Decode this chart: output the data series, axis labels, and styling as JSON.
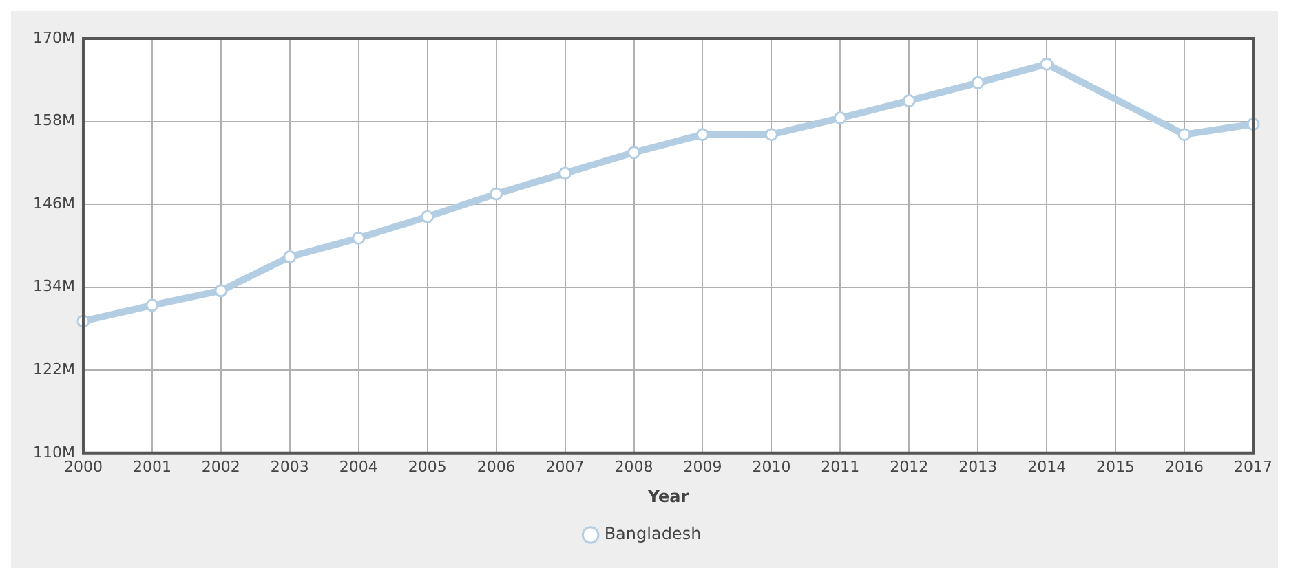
{
  "chart_data": {
    "type": "line",
    "xlabel": "Year",
    "categories": [
      "2000",
      "2001",
      "2002",
      "2003",
      "2004",
      "2005",
      "2006",
      "2007",
      "2008",
      "2009",
      "2010",
      "2011",
      "2012",
      "2013",
      "2014",
      "2015",
      "2016",
      "2017"
    ],
    "series": [
      {
        "name": "Bangladesh",
        "color": "#b3cde3",
        "values": [
          129.1,
          131.4,
          133.5,
          138.4,
          141.1,
          144.2,
          147.5,
          150.5,
          153.5,
          156.1,
          156.1,
          158.5,
          161.0,
          163.6,
          166.3,
          null,
          156.1,
          157.6
        ]
      }
    ],
    "ylim": [
      110,
      170
    ],
    "yticks": [
      {
        "value": 110,
        "label": "110M"
      },
      {
        "value": 122,
        "label": "122M"
      },
      {
        "value": 134,
        "label": "134M"
      },
      {
        "value": 146,
        "label": "146M"
      },
      {
        "value": 158,
        "label": "158M"
      },
      {
        "value": 170,
        "label": "170M"
      }
    ],
    "grid": true,
    "legend": "bottom",
    "marker": "circle",
    "line_style": "solid"
  }
}
